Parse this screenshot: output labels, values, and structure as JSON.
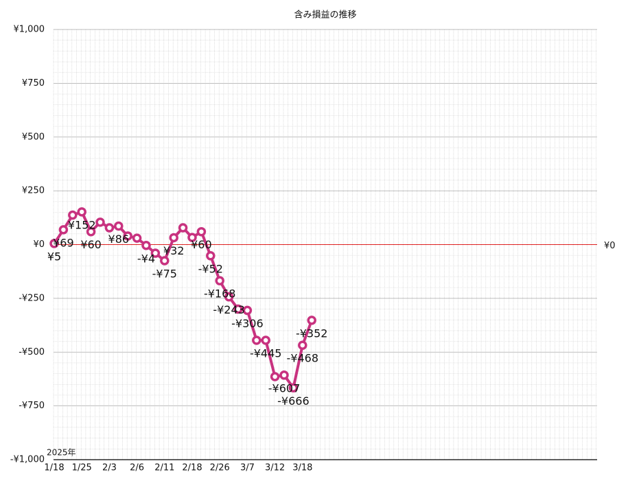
{
  "chart_data": {
    "type": "line",
    "title": "含み損益の推移",
    "x_axis_note": "2025年",
    "categories": [
      "1/18",
      null,
      null,
      "1/25",
      null,
      null,
      "2/3",
      null,
      null,
      "2/6",
      null,
      null,
      "2/11",
      null,
      null,
      "2/18",
      null,
      null,
      "2/26",
      null,
      null,
      "3/7",
      null,
      null,
      "3/12",
      null,
      null,
      "3/18",
      null
    ],
    "series": [
      {
        "name": "含み損益",
        "color": "#c8327f",
        "values": [
          5,
          69,
          137,
          152,
          60,
          104,
          78,
          86,
          40,
          30,
          -4,
          -40,
          -75,
          32,
          78,
          33,
          60,
          -52,
          -168,
          -243,
          -300,
          -306,
          -445,
          -445,
          -614,
          -607,
          -666,
          -468,
          -352
        ],
        "value_labels": [
          "¥5",
          "¥69",
          null,
          "¥152",
          "¥60",
          null,
          null,
          "¥86",
          null,
          null,
          "-¥4",
          null,
          "-¥75",
          "¥32",
          null,
          null,
          "¥60",
          "-¥52",
          "-¥168",
          "-¥243",
          null,
          "-¥306",
          null,
          "-¥445",
          null,
          "-¥607",
          "-¥666",
          "-¥468",
          "-¥352"
        ]
      }
    ],
    "ylim": [
      -1000,
      1000
    ],
    "yticks": [
      {
        "value": -1000,
        "label": "-¥1,000"
      },
      {
        "value": -750,
        "label": "-¥750"
      },
      {
        "value": -500,
        "label": "-¥500"
      },
      {
        "value": -250,
        "label": "-¥250"
      },
      {
        "value": 0,
        "label": "¥0"
      },
      {
        "value": 250,
        "label": "¥250"
      },
      {
        "value": 500,
        "label": "¥500"
      },
      {
        "value": 750,
        "label": "¥750"
      },
      {
        "value": 1000,
        "label": "¥1,000"
      }
    ],
    "ref_line": {
      "value": 0,
      "label": "¥0",
      "color": "#e02020"
    },
    "grid": true
  }
}
